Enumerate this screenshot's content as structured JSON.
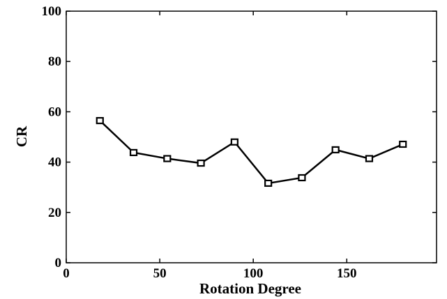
{
  "chart_data": {
    "type": "line",
    "title": "",
    "xlabel": "Rotation Degree",
    "ylabel": "CR",
    "xlim": [
      0,
      198
    ],
    "ylim": [
      0,
      100
    ],
    "x_ticks": [
      0,
      50,
      100,
      150
    ],
    "y_ticks": [
      0,
      20,
      40,
      60,
      80,
      100
    ],
    "x_tick_labels": [
      "0",
      "50",
      "100",
      "150"
    ],
    "y_tick_labels": [
      "0",
      "20",
      "40",
      "60",
      "80",
      "100"
    ],
    "grid": false,
    "legend": "none",
    "series": [
      {
        "marker": "square",
        "color": "#000000",
        "x": [
          18,
          36,
          54,
          72,
          90,
          108,
          126,
          144,
          162,
          180
        ],
        "y": [
          56.5,
          43.8,
          41.4,
          39.6,
          48.0,
          31.6,
          33.8,
          44.9,
          41.4,
          47.1
        ]
      }
    ]
  }
}
